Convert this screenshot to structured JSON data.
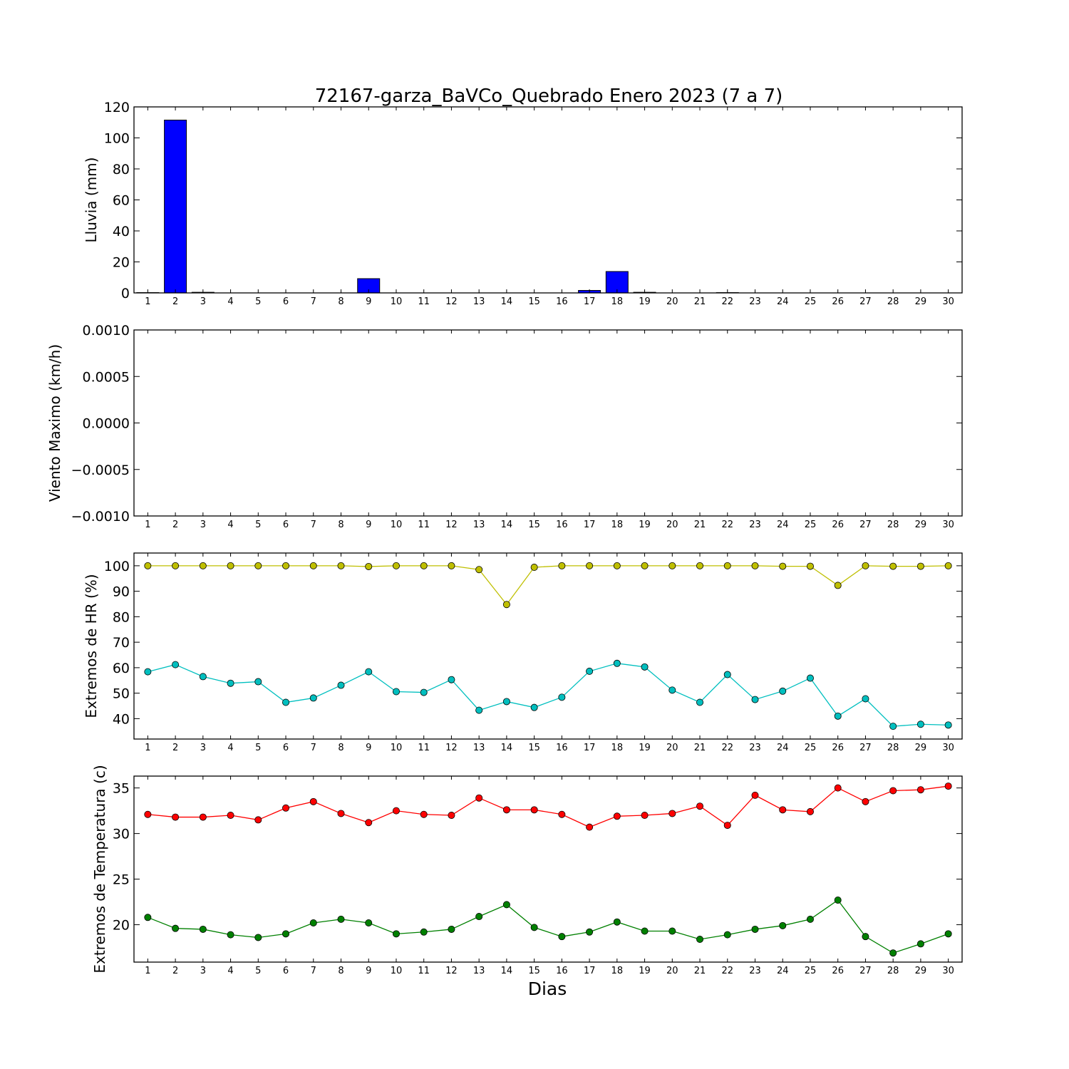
{
  "title": "72167-garza_BaVCo_Quebrado Enero 2023  (7 a 7)",
  "xlabel": "Dias",
  "days": [
    1,
    2,
    3,
    4,
    5,
    6,
    7,
    8,
    9,
    10,
    11,
    12,
    13,
    14,
    15,
    16,
    17,
    18,
    19,
    20,
    21,
    22,
    23,
    24,
    25,
    26,
    27,
    28,
    29,
    30
  ],
  "chart_data": [
    {
      "type": "bar",
      "ylabel": "Lluvia (mm)",
      "ylim": [
        0,
        120
      ],
      "yticks": [
        0,
        20,
        40,
        60,
        80,
        100,
        120
      ],
      "ytick_labels": [
        "0",
        "20",
        "40",
        "60",
        "80",
        "100",
        "120"
      ],
      "grid": false,
      "series": [
        {
          "color": "#0000ff",
          "values": [
            0.2,
            111.5,
            0.4,
            0,
            0,
            0,
            0,
            0,
            9.2,
            0,
            0,
            0,
            0,
            0,
            0,
            0,
            1.6,
            13.8,
            0.4,
            0,
            0,
            0.2,
            0,
            0,
            0,
            0,
            0,
            0,
            0,
            0
          ]
        }
      ]
    },
    {
      "type": "line",
      "ylabel": "Viento Maximo (km/h)",
      "ylim": [
        -0.001,
        0.001
      ],
      "yticks": [
        -0.001,
        -0.0005,
        0,
        0.0005,
        0.001
      ],
      "ytick_labels": [
        "−0.0010",
        "−0.0005",
        "0.0000",
        "0.0005",
        "0.0010"
      ],
      "grid": false,
      "series": []
    },
    {
      "type": "line",
      "ylabel": "Extremos de HR (%)",
      "ylim": [
        32,
        105
      ],
      "yticks": [
        40,
        50,
        60,
        70,
        80,
        90,
        100
      ],
      "ytick_labels": [
        "40",
        "50",
        "60",
        "70",
        "80",
        "90",
        "100"
      ],
      "grid": false,
      "series": [
        {
          "color": "#bfbf00",
          "values": [
            100,
            100,
            100,
            100,
            100,
            100,
            100,
            100,
            99.7,
            100,
            100,
            100,
            98.5,
            84.8,
            99.4,
            100,
            100,
            100,
            100,
            100,
            100,
            100,
            100,
            99.8,
            99.8,
            92.3,
            100,
            99.8,
            99.8,
            100
          ]
        },
        {
          "color": "#00bfbf",
          "values": [
            58.4,
            61.2,
            56.5,
            53.9,
            54.5,
            46.4,
            48.1,
            53.1,
            58.4,
            50.6,
            50.3,
            55.3,
            43.3,
            46.7,
            44.4,
            48.4,
            58.6,
            61.7,
            60.3,
            51.2,
            46.4,
            57.3,
            47.5,
            50.8,
            55.9,
            41.0,
            47.8,
            37.0,
            37.8,
            37.5
          ]
        }
      ]
    },
    {
      "type": "line",
      "ylabel": "Extremos de Temperatura (c)",
      "ylim": [
        15.9,
        36.3
      ],
      "yticks": [
        20,
        25,
        30,
        35
      ],
      "ytick_labels": [
        "20",
        "25",
        "30",
        "35"
      ],
      "grid": false,
      "series": [
        {
          "color": "#ff0000",
          "values": [
            32.1,
            31.8,
            31.8,
            32.0,
            31.5,
            32.8,
            33.5,
            32.2,
            31.2,
            32.5,
            32.1,
            32.0,
            33.9,
            32.6,
            32.6,
            32.1,
            30.7,
            31.9,
            32.0,
            32.2,
            33.0,
            30.9,
            34.2,
            32.6,
            32.4,
            35.0,
            33.5,
            34.7,
            34.8,
            35.2
          ]
        },
        {
          "color": "#008000",
          "values": [
            20.8,
            19.6,
            19.5,
            18.9,
            18.6,
            19.0,
            20.2,
            20.6,
            20.2,
            19.0,
            19.2,
            19.5,
            20.9,
            22.2,
            19.7,
            18.7,
            19.2,
            20.3,
            19.3,
            19.3,
            18.4,
            18.9,
            19.5,
            19.9,
            20.6,
            22.7,
            18.7,
            16.9,
            17.9,
            19.0
          ]
        }
      ]
    }
  ]
}
